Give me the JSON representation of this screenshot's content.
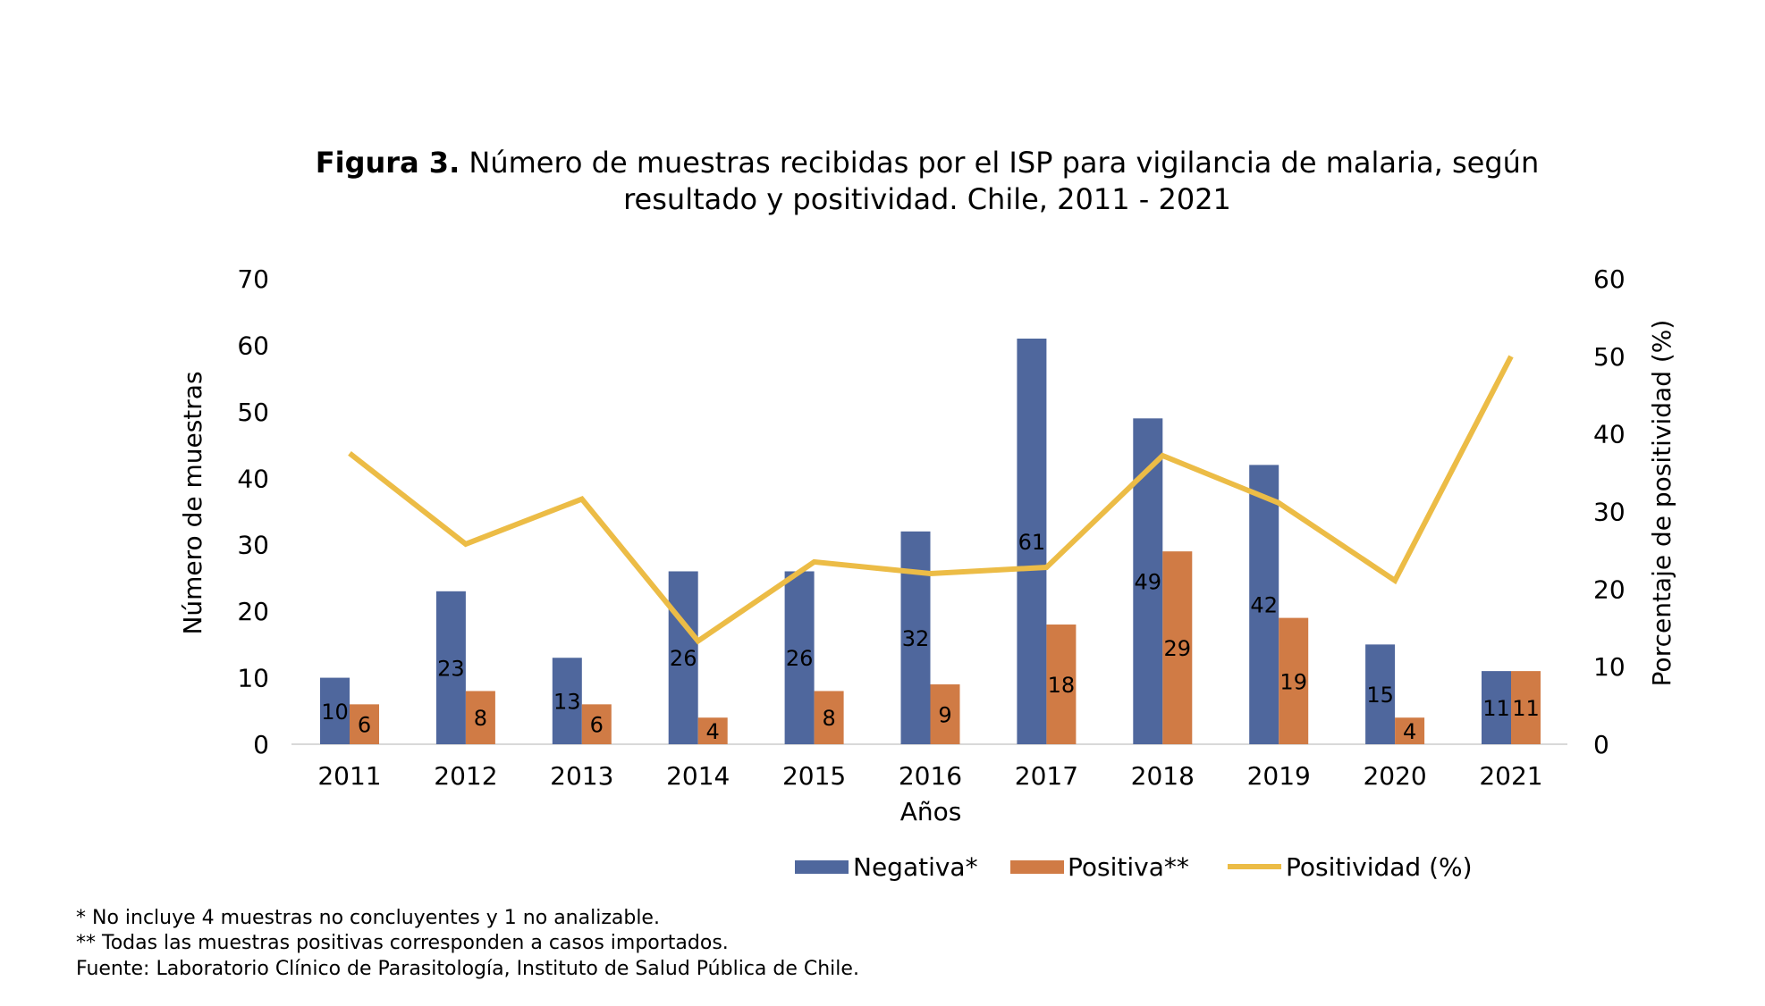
{
  "chart_data": {
    "type": "bar",
    "title_prefix": "Figura 3.",
    "title_line1": "Número de muestras recibidas por el ISP para vigilancia de malaria, según",
    "title_line2": "resultado y positividad. Chile, 2011 - 2021",
    "xlabel": "Años",
    "ylabel": "Número de muestras",
    "y2label": "Porcentaje de positividad (%)",
    "ylim": [
      0,
      70
    ],
    "yticks": [
      0,
      10,
      20,
      30,
      40,
      50,
      60,
      70
    ],
    "y2lim": [
      0,
      60
    ],
    "y2ticks": [
      0,
      10,
      20,
      30,
      40,
      50,
      60
    ],
    "grid": false,
    "legend_position": "bottom",
    "categories": [
      "2011",
      "2012",
      "2013",
      "2014",
      "2015",
      "2016",
      "2017",
      "2018",
      "2019",
      "2020",
      "2021"
    ],
    "series": [
      {
        "name": "Negativa*",
        "type": "bar",
        "axis": "left",
        "color": "#4f679d",
        "values": [
          10,
          23,
          13,
          26,
          26,
          32,
          61,
          49,
          42,
          15,
          11
        ]
      },
      {
        "name": "Positiva**",
        "type": "bar",
        "axis": "left",
        "color": "#d07b45",
        "values": [
          6,
          8,
          6,
          4,
          8,
          9,
          18,
          29,
          19,
          4,
          11
        ]
      },
      {
        "name": "Positividad (%)",
        "type": "line",
        "axis": "right",
        "color": "#ecbc46",
        "values": [
          37.5,
          25.8,
          31.6,
          13.3,
          23.5,
          22.0,
          22.8,
          37.2,
          31.1,
          21.1,
          50.0
        ]
      }
    ]
  },
  "footnotes": [
    "* No incluye 4 muestras no concluyentes y 1 no analizable.",
    "** Todas las muestras positivas corresponden a casos importados.",
    "Fuente: Laboratorio Clínico de Parasitología, Instituto de Salud Pública de Chile."
  ]
}
